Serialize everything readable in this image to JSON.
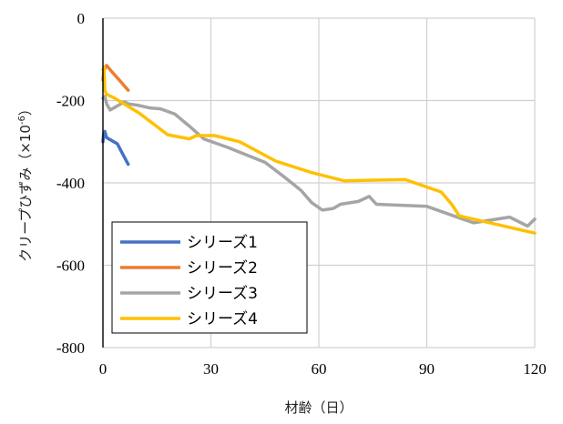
{
  "chart_data": {
    "type": "line",
    "xlabel": "材齢（日）",
    "ylabel": "クリープひずみ（×10",
    "ylabel_superscript": "-6",
    "ylabel_suffix": "）",
    "xlim": [
      0,
      120
    ],
    "ylim": [
      -800,
      0
    ],
    "xticks": [
      0,
      30,
      60,
      90,
      120
    ],
    "yticks": [
      0,
      -200,
      -400,
      -600,
      -800
    ],
    "grid": true,
    "legend_position": "bottom-left",
    "series": [
      {
        "name": "シリーズ1",
        "color": "#4472C4",
        "points": [
          [
            0,
            -300
          ],
          [
            0.2,
            -280
          ],
          [
            0.5,
            -275
          ],
          [
            1,
            -290
          ],
          [
            2,
            -295
          ],
          [
            4,
            -305
          ],
          [
            5.5,
            -330
          ],
          [
            7,
            -355
          ]
        ]
      },
      {
        "name": "シリーズ2",
        "color": "#ED7D31",
        "points": [
          [
            0,
            -150
          ],
          [
            0.3,
            -125
          ],
          [
            1,
            -115
          ],
          [
            3,
            -135
          ],
          [
            5,
            -155
          ],
          [
            7,
            -175
          ]
        ]
      },
      {
        "name": "シリーズ3",
        "color": "#A5A5A5",
        "points": [
          [
            0,
            -195
          ],
          [
            0.5,
            -190
          ],
          [
            1,
            -208
          ],
          [
            2,
            -223
          ],
          [
            4,
            -213
          ],
          [
            6,
            -203
          ],
          [
            7,
            -208
          ],
          [
            10,
            -212
          ],
          [
            13,
            -218
          ],
          [
            16,
            -220
          ],
          [
            20,
            -233
          ],
          [
            24,
            -262
          ],
          [
            28,
            -293
          ],
          [
            35,
            -315
          ],
          [
            45,
            -350
          ],
          [
            50,
            -383
          ],
          [
            55,
            -418
          ],
          [
            58,
            -448
          ],
          [
            61,
            -466
          ],
          [
            64,
            -462
          ],
          [
            66,
            -452
          ],
          [
            71,
            -445
          ],
          [
            74,
            -433
          ],
          [
            76,
            -452
          ],
          [
            90,
            -457
          ],
          [
            100,
            -488
          ],
          [
            103,
            -497
          ],
          [
            113,
            -483
          ],
          [
            118,
            -505
          ],
          [
            120,
            -488
          ]
        ]
      },
      {
        "name": "シリーズ4",
        "color": "#FFC000",
        "points": [
          [
            0,
            -125
          ],
          [
            0.3,
            -118
          ],
          [
            0.5,
            -175
          ],
          [
            1,
            -185
          ],
          [
            3,
            -193
          ],
          [
            10,
            -230
          ],
          [
            18,
            -283
          ],
          [
            24,
            -293
          ],
          [
            26,
            -285
          ],
          [
            31,
            -285
          ],
          [
            38,
            -300
          ],
          [
            48,
            -347
          ],
          [
            58,
            -375
          ],
          [
            67,
            -395
          ],
          [
            84,
            -392
          ],
          [
            94,
            -422
          ],
          [
            97,
            -453
          ],
          [
            99,
            -480
          ],
          [
            120,
            -522
          ]
        ]
      }
    ]
  }
}
